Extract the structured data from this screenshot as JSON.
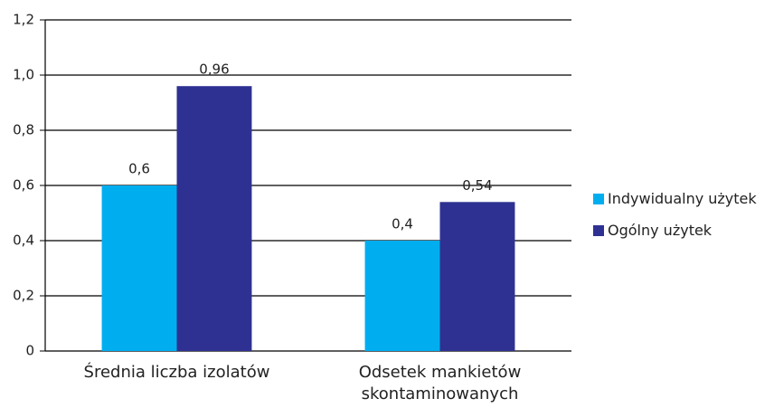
{
  "chart_data": {
    "type": "bar",
    "categories": [
      "Średnia liczba izolatów",
      "Odsetek mankietów skontaminowanych"
    ],
    "series": [
      {
        "name": "Indywidualny użytek",
        "color": "#00aeef",
        "values": [
          0.6,
          0.4
        ],
        "value_labels": [
          "0,6",
          "0,4"
        ]
      },
      {
        "name": "Ogólny użytek",
        "color": "#2e3192",
        "values": [
          0.96,
          0.54
        ],
        "value_labels": [
          "0,96",
          "0,54"
        ]
      }
    ],
    "ylim": [
      0,
      1.2
    ],
    "yticks": [
      0,
      {
        "value": 0.2,
        "label": "0,2"
      },
      {
        "value": 0.4,
        "label": "0,4"
      },
      {
        "value": 0.6,
        "label": "0,6"
      },
      {
        "value": 0.8,
        "label": "0,8"
      },
      {
        "value": 1.0,
        "label": "1,0"
      },
      {
        "value": 1.2,
        "label": "1,2"
      }
    ],
    "grid": true,
    "legend": "right"
  }
}
